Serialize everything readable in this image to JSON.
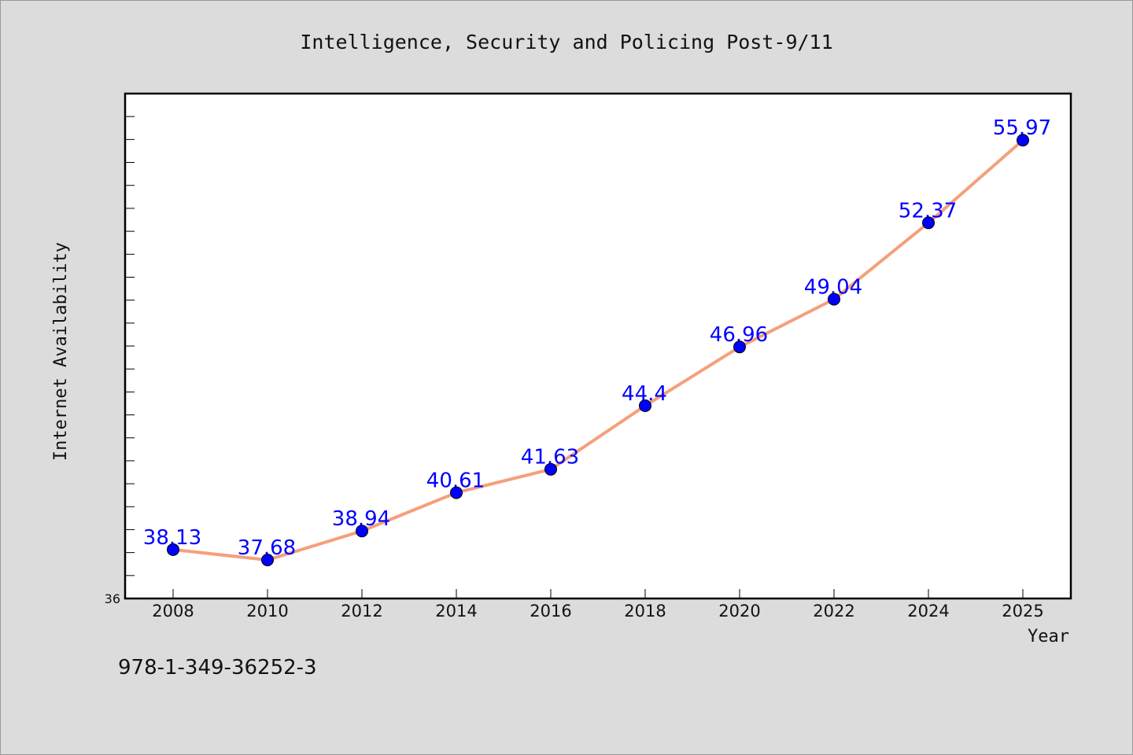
{
  "chart_data": {
    "type": "line",
    "title": "Intelligence, Security and Policing Post-9/11",
    "xlabel": "Year",
    "ylabel": "Internet Availability",
    "x": [
      "2008",
      "2010",
      "2012",
      "2014",
      "2016",
      "2018",
      "2020",
      "2022",
      "2024",
      "2025"
    ],
    "series": [
      {
        "values": [
          38.13,
          37.68,
          38.94,
          40.61,
          41.63,
          44.4,
          46.96,
          49.04,
          52.37,
          55.97
        ],
        "data_labels": [
          "38.13",
          "37.68",
          "38.94",
          "40.61",
          "41.63",
          "44.4",
          "46.96",
          "49.04",
          "52.37",
          "55.97"
        ]
      }
    ],
    "ylim": [
      36,
      58
    ],
    "y_tick_labels": [
      "36"
    ],
    "y_minor_tick_step": 1,
    "grid": false,
    "legend": "none",
    "line_color": "#f4a07c",
    "marker_color": "#0000ff",
    "data_label_color": "#0000ff"
  },
  "footer": {
    "isbn": "978-1-349-36252-3"
  },
  "colors": {
    "background": "#dcdcdc",
    "plot_background": "#ffffff",
    "axis": "#000000"
  }
}
